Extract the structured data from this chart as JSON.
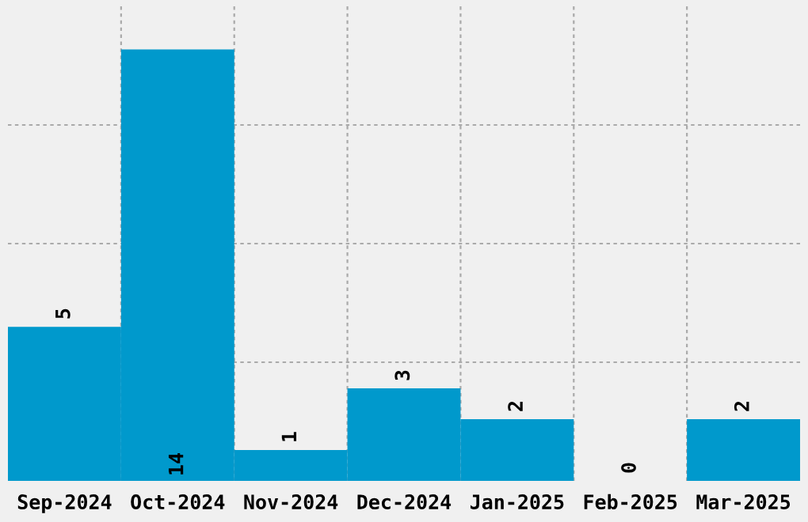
{
  "chart_data": {
    "type": "bar",
    "categories": [
      "Sep-2024",
      "Oct-2024",
      "Nov-2024",
      "Dec-2024",
      "Jan-2025",
      "Feb-2025",
      "Mar-2025"
    ],
    "values": [
      5,
      14,
      1,
      3,
      2,
      0,
      2
    ],
    "color": "#0099cc",
    "data_labels": true,
    "grid": true,
    "tick_labels": "x",
    "ylim": [
      0,
      15.4
    ],
    "yticks": [
      {
        "value": 3.85,
        "label": null
      },
      {
        "value": 7.7,
        "label": null
      },
      {
        "value": 11.55,
        "label": null
      }
    ]
  }
}
